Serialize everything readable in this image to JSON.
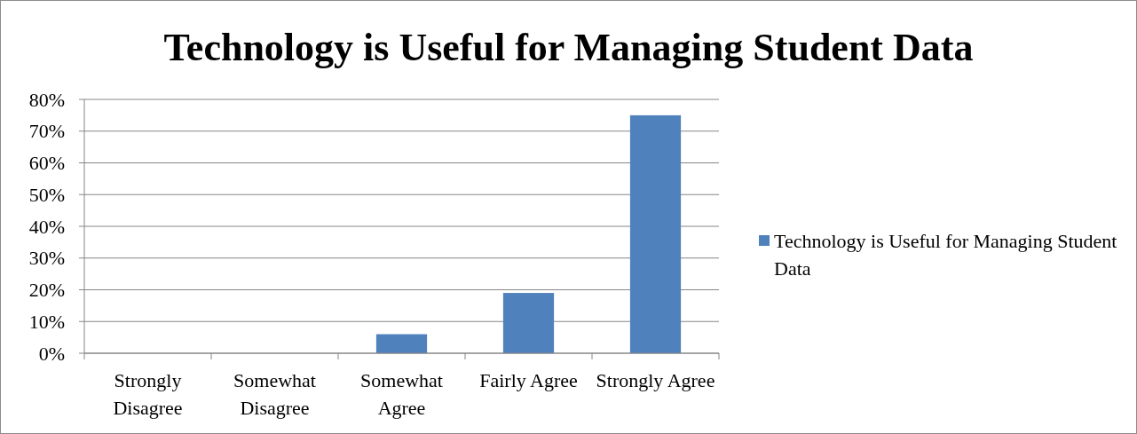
{
  "chart_data": {
    "type": "bar",
    "title": "Technology is Useful for Managing Student Data",
    "categories": [
      "Strongly Disagree",
      "Somewhat Disagree",
      "Somewhat Agree",
      "Fairly Agree",
      "Strongly Agree"
    ],
    "series": [
      {
        "name": "Technology is Useful for Managing Student Data",
        "color": "#4f81bd",
        "values": [
          0,
          0,
          6,
          19,
          75
        ]
      }
    ],
    "ylim": [
      0,
      80
    ],
    "yticks": [
      {
        "value": 0,
        "label": "0%"
      },
      {
        "value": 10,
        "label": "10%"
      },
      {
        "value": 20,
        "label": "20%"
      },
      {
        "value": 30,
        "label": "30%"
      },
      {
        "value": 40,
        "label": "40%"
      },
      {
        "value": 50,
        "label": "50%"
      },
      {
        "value": 60,
        "label": "60%"
      },
      {
        "value": 70,
        "label": "70%"
      },
      {
        "value": 80,
        "label": "80%"
      }
    ],
    "grid": "y",
    "legend": "right"
  }
}
